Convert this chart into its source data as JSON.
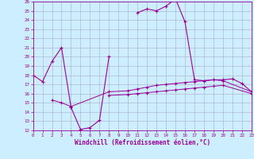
{
  "xlabel": "Windchill (Refroidissement éolien,°C)",
  "background_color": "#cceeff",
  "line_color": "#990099",
  "xlim": [
    0,
    23
  ],
  "ylim": [
    12,
    26
  ],
  "yticks": [
    12,
    13,
    14,
    15,
    16,
    17,
    18,
    19,
    20,
    21,
    22,
    23,
    24,
    25,
    26
  ],
  "xticks": [
    0,
    1,
    2,
    3,
    4,
    5,
    6,
    7,
    8,
    9,
    10,
    11,
    12,
    13,
    14,
    15,
    16,
    17,
    18,
    19,
    20,
    21,
    22,
    23
  ],
  "series": [
    {
      "x": [
        0,
        1,
        2,
        3,
        4,
        5,
        6,
        7,
        8,
        9,
        10,
        11,
        12,
        13,
        14,
        15,
        16,
        17,
        18,
        19,
        20,
        21,
        22,
        23
      ],
      "y": [
        18.0,
        17.3,
        19.5,
        21.0,
        14.5,
        12.1,
        12.3,
        13.1,
        20.0,
        null,
        null,
        24.8,
        25.2,
        25.0,
        25.5,
        26.3,
        23.8,
        17.5,
        17.4,
        17.5,
        17.5,
        17.6,
        17.1,
        16.2
      ]
    },
    {
      "x": [
        2,
        3,
        4,
        8,
        10,
        11,
        12,
        13,
        14,
        15,
        16,
        17,
        18,
        19,
        20,
        23
      ],
      "y": [
        15.3,
        15.0,
        14.6,
        16.2,
        16.3,
        16.5,
        16.7,
        16.9,
        17.0,
        17.1,
        17.2,
        17.3,
        17.4,
        17.5,
        17.4,
        16.2
      ]
    },
    {
      "x": [
        8,
        10,
        11,
        12,
        13,
        14,
        15,
        16,
        17,
        18,
        19,
        20,
        23
      ],
      "y": [
        15.8,
        15.9,
        16.0,
        16.1,
        16.2,
        16.3,
        16.4,
        16.5,
        16.6,
        16.7,
        16.8,
        16.9,
        16.0
      ]
    }
  ]
}
